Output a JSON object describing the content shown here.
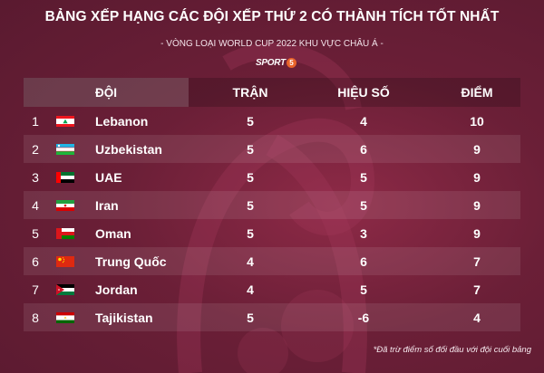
{
  "header": {
    "title": "BẢNG XẾP HẠNG CÁC ĐỘI XẾP THỨ 2 CÓ THÀNH TÍCH TỐT NHẤT",
    "subtitle": "- VÒNG LOẠI WORLD CUP 2022 KHU VỰC CHÂU Á -",
    "brand_text": "SPORT",
    "brand_num": "5"
  },
  "table": {
    "columns": {
      "team": "ĐỘI",
      "played": "TRẬN",
      "goal_diff": "HIỆU SỐ",
      "points": "ĐIỂM"
    },
    "rows": [
      {
        "rank": "1",
        "team": "Lebanon",
        "flag": "lebanon-flag",
        "played": "5",
        "goal_diff": "4",
        "points": "10"
      },
      {
        "rank": "2",
        "team": "Uzbekistan",
        "flag": "uzbekistan-flag",
        "played": "5",
        "goal_diff": "6",
        "points": "9"
      },
      {
        "rank": "3",
        "team": "UAE",
        "flag": "uae-flag",
        "played": "5",
        "goal_diff": "5",
        "points": "9"
      },
      {
        "rank": "4",
        "team": "Iran",
        "flag": "iran-flag",
        "played": "5",
        "goal_diff": "5",
        "points": "9"
      },
      {
        "rank": "5",
        "team": "Oman",
        "flag": "oman-flag",
        "played": "5",
        "goal_diff": "3",
        "points": "9"
      },
      {
        "rank": "6",
        "team": "Trung Quốc",
        "flag": "china-flag",
        "played": "4",
        "goal_diff": "6",
        "points": "7"
      },
      {
        "rank": "7",
        "team": "Jordan",
        "flag": "jordan-flag",
        "played": "4",
        "goal_diff": "5",
        "points": "7"
      },
      {
        "rank": "8",
        "team": "Tajikistan",
        "flag": "tajikistan-flag",
        "played": "5",
        "goal_diff": "-6",
        "points": "4"
      }
    ]
  },
  "footnote": "*Đã trừ điểm số đối đầu với đội cuối bảng",
  "colors": {
    "background": "#6b1f37",
    "brand_accent": "#e8632a"
  }
}
